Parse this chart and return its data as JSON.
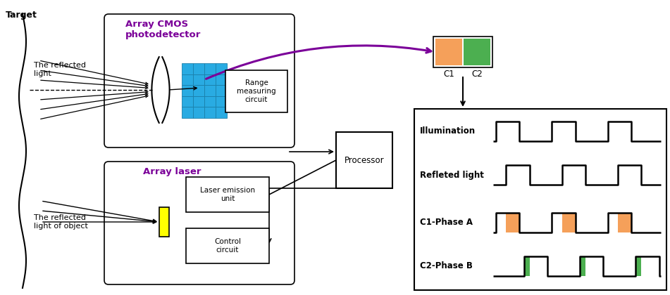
{
  "bg_color": "#ffffff",
  "target_label": "Target",
  "array_cmos_label": "Array CMOS\nphotodetector",
  "array_laser_label": "Array laser",
  "range_circuit_label": "Range\nmeasuring\ncircuit",
  "laser_emission_label": "Laser emission\nunit",
  "control_circuit_label": "Control\ncircuit",
  "processor_label": "Processor",
  "reflected_light_label": "The reflected\nlight",
  "reflected_object_label": "The reflected\nlight of object",
  "illumination_label": "Illumination",
  "reflected_light2_label": "Refleted light",
  "c1_phase_label": "C1-Phase A",
  "c2_phase_label": "C2-Phase B",
  "c1_label": "C1",
  "c2_label": "C2",
  "orange_color": "#F5A05A",
  "green_color": "#4CAF50",
  "yellow_color": "#FFFF00",
  "blue_cmos_color": "#29ABE2",
  "blue_cmos_edge": "#1A7FAA",
  "purple_color": "#7B0099",
  "black_color": "#000000"
}
